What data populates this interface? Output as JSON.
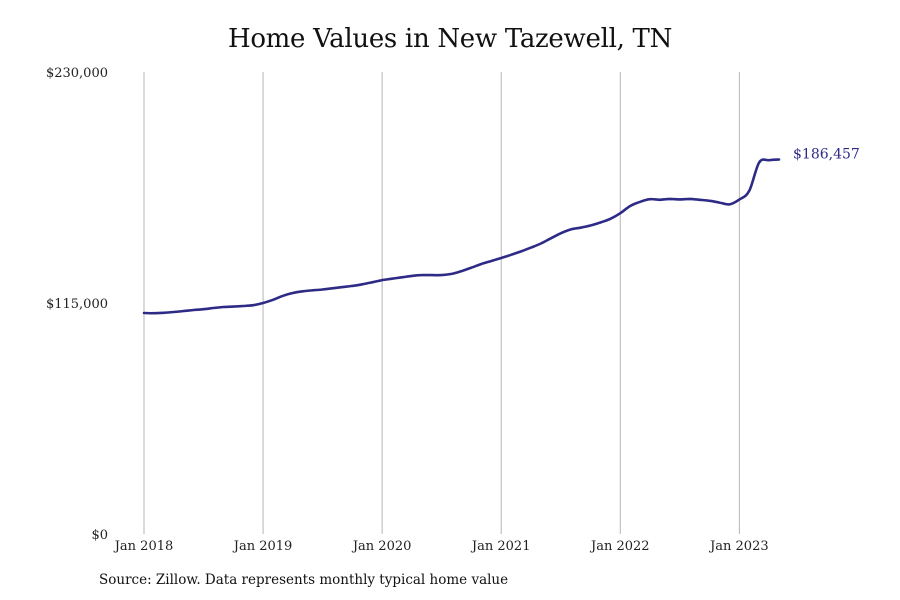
{
  "chart_data": {
    "type": "line",
    "title": "Home Values in New Tazewell, TN",
    "xlabel": "",
    "ylabel": "",
    "ylim": [
      0,
      230000
    ],
    "y_ticks": [
      {
        "value": 0,
        "label": "$0"
      },
      {
        "value": 115000,
        "label": "$115,000"
      },
      {
        "value": 230000,
        "label": "$230,000"
      }
    ],
    "x_ticks": [
      {
        "value": 2018.0,
        "label": "Jan 2018"
      },
      {
        "value": 2019.0,
        "label": "Jan 2019"
      },
      {
        "value": 2020.0,
        "label": "Jan 2020"
      },
      {
        "value": 2021.0,
        "label": "Jan 2021"
      },
      {
        "value": 2022.0,
        "label": "Jan 2022"
      },
      {
        "value": 2023.0,
        "label": "Jan 2023"
      }
    ],
    "xlim": [
      2018.0,
      2023.333
    ],
    "grid": "vertical",
    "series": [
      {
        "name": "",
        "color": "#2e2b87",
        "end_label": "$186,457",
        "points": [
          [
            2018.0,
            110000
          ],
          [
            2018.083,
            109900
          ],
          [
            2018.167,
            110100
          ],
          [
            2018.25,
            110500
          ],
          [
            2018.333,
            111000
          ],
          [
            2018.417,
            111500
          ],
          [
            2018.5,
            111900
          ],
          [
            2018.583,
            112500
          ],
          [
            2018.667,
            113000
          ],
          [
            2018.75,
            113200
          ],
          [
            2018.833,
            113500
          ],
          [
            2018.917,
            113900
          ],
          [
            2019.0,
            115000
          ],
          [
            2019.083,
            116600
          ],
          [
            2019.167,
            118600
          ],
          [
            2019.25,
            120000
          ],
          [
            2019.333,
            120800
          ],
          [
            2019.417,
            121300
          ],
          [
            2019.5,
            121700
          ],
          [
            2019.583,
            122300
          ],
          [
            2019.667,
            122900
          ],
          [
            2019.75,
            123500
          ],
          [
            2019.833,
            124300
          ],
          [
            2019.917,
            125300
          ],
          [
            2020.0,
            126400
          ],
          [
            2020.083,
            127100
          ],
          [
            2020.167,
            127800
          ],
          [
            2020.25,
            128500
          ],
          [
            2020.333,
            128900
          ],
          [
            2020.417,
            128900
          ],
          [
            2020.5,
            128900
          ],
          [
            2020.583,
            129500
          ],
          [
            2020.667,
            130900
          ],
          [
            2020.75,
            132600
          ],
          [
            2020.833,
            134400
          ],
          [
            2020.917,
            135900
          ],
          [
            2021.0,
            137400
          ],
          [
            2021.083,
            139000
          ],
          [
            2021.167,
            140700
          ],
          [
            2021.25,
            142600
          ],
          [
            2021.333,
            144600
          ],
          [
            2021.417,
            147200
          ],
          [
            2021.5,
            149700
          ],
          [
            2021.583,
            151600
          ],
          [
            2021.667,
            152500
          ],
          [
            2021.75,
            153600
          ],
          [
            2021.833,
            155100
          ],
          [
            2021.917,
            156900
          ],
          [
            2022.0,
            159700
          ],
          [
            2022.083,
            163300
          ],
          [
            2022.167,
            165400
          ],
          [
            2022.25,
            166700
          ],
          [
            2022.333,
            166400
          ],
          [
            2022.417,
            166800
          ],
          [
            2022.5,
            166600
          ],
          [
            2022.583,
            166800
          ],
          [
            2022.667,
            166400
          ],
          [
            2022.75,
            165900
          ],
          [
            2022.833,
            165000
          ],
          [
            2022.917,
            164100
          ],
          [
            2023.0,
            166500
          ],
          [
            2023.083,
            170800
          ],
          [
            2023.167,
            185000
          ],
          [
            2023.25,
            186100
          ],
          [
            2023.333,
            186457
          ]
        ]
      }
    ]
  },
  "footer": {
    "source": "Source: Zillow. Data represents monthly typical home value"
  }
}
